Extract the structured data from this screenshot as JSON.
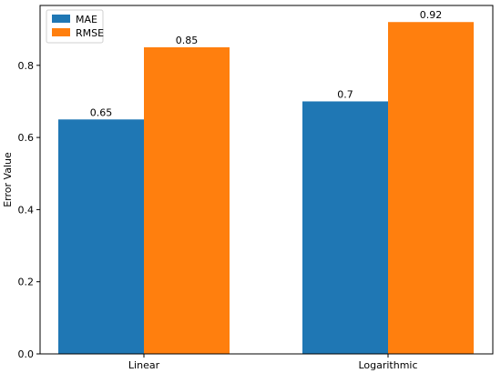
{
  "chart_data": {
    "type": "bar",
    "title": "",
    "xlabel": "",
    "ylabel": "Error Value",
    "categories": [
      "Linear",
      "Logarithmic"
    ],
    "series": [
      {
        "name": "MAE",
        "values": [
          0.65,
          0.7
        ],
        "labels": [
          "0.65",
          "0.7"
        ],
        "color": "#1f77b4"
      },
      {
        "name": "RMSE",
        "values": [
          0.85,
          0.92
        ],
        "labels": [
          "0.85",
          "0.92"
        ],
        "color": "#ff7f0e"
      }
    ],
    "ylim": [
      0,
      0.966
    ],
    "yticks": [
      0.0,
      0.2,
      0.4,
      0.6,
      0.8
    ],
    "ytick_labels": [
      "0.0",
      "0.2",
      "0.4",
      "0.6",
      "0.8"
    ],
    "grid": false,
    "legend_position": "top-left"
  }
}
